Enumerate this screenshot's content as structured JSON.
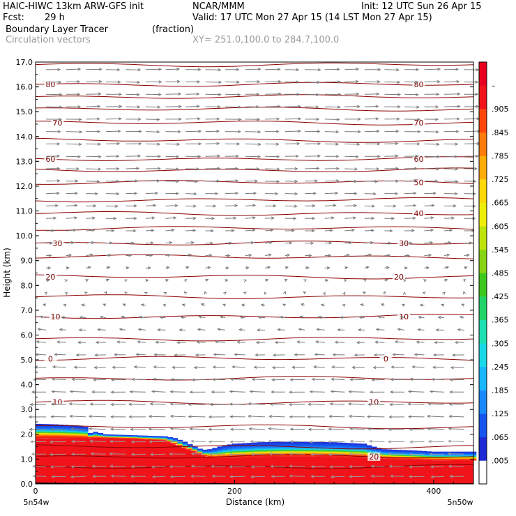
{
  "header": {
    "model": "HAIC-HIWC 13km ARW-GFS init",
    "org": "NCAR/MMM",
    "init": "Init: 12 UTC Sun 26 Apr 15",
    "fcst_label": "Fcst:",
    "fcst_value": "29 h",
    "valid": "Valid: 17 UTC Mon 27 Apr 15 (14 LST Mon 27 Apr 15)",
    "field_name": "Boundary Layer Tracer",
    "field_units": "(fraction)",
    "overlay_name": "Circulation vectors",
    "xsect": "XY= 251.0,100.0 to 284.7,100.0"
  },
  "chart_data": {
    "type": "heatmap",
    "xlabel": "Distance (km)",
    "ylabel": "Height (km)",
    "xlim": [
      0,
      440
    ],
    "ylim": [
      0,
      17
    ],
    "x_ticks": [
      0,
      200,
      400
    ],
    "y_ticks": [
      "0.0",
      "1.0",
      "2.0",
      "3.0",
      "4.0",
      "5.0",
      "6.0",
      "7.0",
      "8.0",
      "9.0",
      "10.0",
      "11.0",
      "12.0",
      "13.0",
      "14.0",
      "15.0",
      "16.0",
      "17.0"
    ],
    "x_endpoint_labels": [
      "5n54w",
      "5n50w"
    ],
    "colorbar": {
      "levels": [
        ".005",
        ".065",
        ".125",
        ".185",
        ".245",
        ".305",
        ".365",
        ".425",
        ".485",
        ".545",
        ".605",
        ".665",
        ".725",
        ".785",
        ".845",
        ".905",
        "–"
      ],
      "colors": [
        "#ffffff",
        "#1e2ad6",
        "#1656ee",
        "#1a88ff",
        "#1ab6ff",
        "#19d9e8",
        "#1ee0b0",
        "#22d468",
        "#3cc81e",
        "#86d414",
        "#bce40c",
        "#eeee0a",
        "#ffd80a",
        "#ffac08",
        "#ff7a08",
        "#ff460a",
        "#f0141a",
        "#e8001e"
      ]
    },
    "terrain": {
      "x_km": [
        0,
        10,
        30,
        55,
        100,
        145,
        175,
        200,
        250,
        300,
        350,
        400,
        440
      ],
      "height_km": [
        0.06,
        0.05,
        0.04,
        0.03,
        0.04,
        0.02,
        0.03,
        0.02,
        0.02,
        0.01,
        0.02,
        0.02,
        0.02
      ]
    },
    "tracer_layer": {
      "x_km": [
        0,
        20,
        40,
        50,
        55,
        60,
        70,
        100,
        130,
        140,
        150,
        160,
        165,
        170,
        175,
        180,
        190,
        200,
        225,
        250,
        270,
        300,
        330,
        340,
        350,
        360,
        380,
        400,
        420,
        440
      ],
      "top_saturated_km": [
        1.85,
        1.85,
        1.84,
        1.84,
        1.85,
        1.86,
        1.85,
        1.82,
        1.75,
        1.6,
        1.42,
        1.3,
        1.22,
        1.12,
        1.08,
        1.05,
        1.05,
        1.06,
        1.09,
        1.1,
        1.1,
        1.09,
        1.06,
        1.05,
        1.02,
        1.0,
        0.98,
        0.95,
        0.94,
        0.94
      ],
      "top_edge_km": [
        2.42,
        2.4,
        2.36,
        2.3,
        2.05,
        2.1,
        2.0,
        1.96,
        1.92,
        1.85,
        1.7,
        1.5,
        1.42,
        1.38,
        1.4,
        1.45,
        1.56,
        1.62,
        1.68,
        1.7,
        1.7,
        1.68,
        1.62,
        1.5,
        1.4,
        1.38,
        1.35,
        1.3,
        1.3,
        1.3
      ]
    },
    "contours": [
      {
        "label": "80",
        "height_km": 16.1,
        "labels_at_km": [
          15,
          385
        ]
      },
      {
        "label": "70",
        "height_km": 14.55,
        "labels_at_km": [
          22,
          385
        ]
      },
      {
        "label": "60",
        "height_km": 13.1,
        "labels_at_km": [
          15,
          385
        ]
      },
      {
        "label": "50",
        "height_km": 12.15,
        "labels_at_km": [
          385
        ]
      },
      {
        "label": "40",
        "height_km": 10.9,
        "labels_at_km": [
          385
        ]
      },
      {
        "label": "30",
        "height_km": 9.7,
        "labels_at_km": [
          22,
          370
        ]
      },
      {
        "label": "20",
        "height_km": 8.35,
        "labels_at_km": [
          15,
          365
        ]
      },
      {
        "label": "10",
        "height_km": 6.75,
        "labels_at_km": [
          20,
          370
        ]
      },
      {
        "label": "0",
        "height_km": 5.05,
        "labels_at_km": [
          15,
          352
        ]
      },
      {
        "label": "10",
        "height_km": 3.3,
        "labels_at_km": [
          22,
          340
        ]
      },
      {
        "label": "20",
        "height_km": 1.1,
        "labels_at_km": [
          340
        ]
      }
    ],
    "other_contours_km": [
      16.9,
      15.6,
      15.1,
      13.85,
      12.65,
      11.45,
      10.3,
      9.15,
      7.55,
      5.85,
      4.25,
      2.3,
      1.5,
      0.7
    ],
    "vectors": {
      "columns_km": [
        5,
        25,
        45,
        65,
        85,
        105,
        125,
        145,
        165,
        185,
        205,
        225,
        245,
        265,
        285,
        305,
        325,
        345,
        365,
        385,
        405,
        425
      ],
      "levels_km": [
        16.7,
        16.2,
        15.7,
        15.2,
        14.7,
        14.2,
        13.7,
        13.2,
        12.7,
        12.2,
        11.7,
        11.2,
        10.7,
        10.2,
        9.7,
        9.2,
        8.7,
        8.2,
        7.7,
        7.2,
        6.7,
        6.2,
        5.7,
        5.2,
        4.7,
        4.2,
        3.7,
        3.2,
        2.7,
        2.2,
        1.7,
        1.2,
        0.7,
        0.3
      ],
      "profile_height_km": [
        0.3,
        1.0,
        2.0,
        3.0,
        4.0,
        5.0,
        6.0,
        7.0,
        8.0,
        9.0,
        10.0,
        11.0,
        12.0,
        13.0,
        14.0,
        15.0,
        16.0,
        17.0
      ],
      "profile_u": [
        -1.0,
        -1.05,
        -1.1,
        -1.15,
        -1.0,
        -0.8,
        -0.55,
        -0.3,
        0.1,
        0.35,
        0.6,
        0.75,
        0.9,
        1.0,
        1.05,
        1.05,
        1.05,
        1.05
      ],
      "profile_w": [
        0.0,
        0.0,
        0.02,
        0.03,
        0.02,
        0.0,
        0.04,
        0.06,
        0.05,
        0.04,
        0.03,
        0.02,
        0.0,
        0.0,
        0.0,
        0.0,
        0.0,
        0.0
      ]
    }
  }
}
